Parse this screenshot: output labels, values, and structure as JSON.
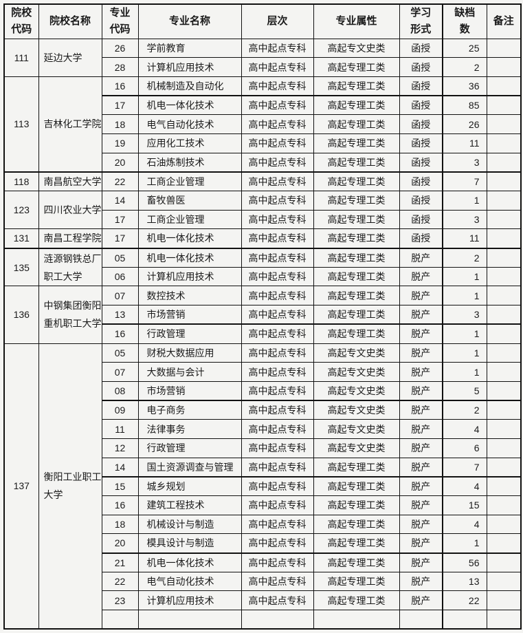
{
  "table": {
    "headers": {
      "school_code": "院校\n代码",
      "school_name": "院校名称",
      "major_code": "专业\n代码",
      "major_name": "专业名称",
      "level": "层次",
      "attribute": "专业属性",
      "study_form": "学习\n形式",
      "vacancy": "缺档\n数",
      "remark": "备注"
    },
    "colors": {
      "border": "#111111",
      "background": "#f4f4f2",
      "text": "#1a1a1a"
    },
    "groups": [
      {
        "code": "111",
        "name": "延边大学",
        "majors": [
          {
            "code": "26",
            "name": "学前教育",
            "level": "高中起点专科",
            "attr": "高起专文史类",
            "form": "函授",
            "vacancy": "25",
            "remark": ""
          },
          {
            "code": "28",
            "name": "计算机应用技术",
            "level": "高中起点专科",
            "attr": "高起专理工类",
            "form": "函授",
            "vacancy": "2",
            "remark": ""
          }
        ]
      },
      {
        "code": "113",
        "name": "吉林化工学院",
        "majors": [
          {
            "code": "16",
            "name": "机械制造及自动化",
            "level": "高中起点专科",
            "attr": "高起专理工类",
            "form": "函授",
            "vacancy": "36",
            "remark": ""
          },
          {
            "code": "17",
            "name": "机电一体化技术",
            "level": "高中起点专科",
            "attr": "高起专理工类",
            "form": "函授",
            "vacancy": "85",
            "remark": ""
          },
          {
            "code": "18",
            "name": "电气自动化技术",
            "level": "高中起点专科",
            "attr": "高起专理工类",
            "form": "函授",
            "vacancy": "26",
            "remark": ""
          },
          {
            "code": "19",
            "name": "应用化工技术",
            "level": "高中起点专科",
            "attr": "高起专理工类",
            "form": "函授",
            "vacancy": "11",
            "remark": ""
          },
          {
            "code": "20",
            "name": "石油炼制技术",
            "level": "高中起点专科",
            "attr": "高起专理工类",
            "form": "函授",
            "vacancy": "3",
            "remark": ""
          }
        ]
      },
      {
        "code": "118",
        "name": "南昌航空大学",
        "majors": [
          {
            "code": "22",
            "name": "工商企业管理",
            "level": "高中起点专科",
            "attr": "高起专理工类",
            "form": "函授",
            "vacancy": "7",
            "remark": ""
          }
        ]
      },
      {
        "code": "123",
        "name": "四川农业大学",
        "majors": [
          {
            "code": "14",
            "name": "畜牧兽医",
            "level": "高中起点专科",
            "attr": "高起专理工类",
            "form": "函授",
            "vacancy": "1",
            "remark": ""
          },
          {
            "code": "17",
            "name": "工商企业管理",
            "level": "高中起点专科",
            "attr": "高起专理工类",
            "form": "函授",
            "vacancy": "3",
            "remark": ""
          }
        ]
      },
      {
        "code": "131",
        "name": "南昌工程学院",
        "majors": [
          {
            "code": "17",
            "name": "机电一体化技术",
            "level": "高中起点专科",
            "attr": "高起专理工类",
            "form": "函授",
            "vacancy": "11",
            "remark": ""
          }
        ]
      },
      {
        "code": "135",
        "name": "涟源钢铁总厂职工大学",
        "majors": [
          {
            "code": "05",
            "name": "机电一体化技术",
            "level": "高中起点专科",
            "attr": "高起专理工类",
            "form": "脱产",
            "vacancy": "2",
            "remark": ""
          },
          {
            "code": "06",
            "name": "计算机应用技术",
            "level": "高中起点专科",
            "attr": "高起专理工类",
            "form": "脱产",
            "vacancy": "1",
            "remark": ""
          }
        ]
      },
      {
        "code": "136",
        "name": "中钢集团衡阳重机职工大学",
        "majors": [
          {
            "code": "07",
            "name": "数控技术",
            "level": "高中起点专科",
            "attr": "高起专理工类",
            "form": "脱产",
            "vacancy": "1",
            "remark": ""
          },
          {
            "code": "13",
            "name": "市场营销",
            "level": "高中起点专科",
            "attr": "高起专理工类",
            "form": "脱产",
            "vacancy": "3",
            "remark": ""
          },
          {
            "code": "16",
            "name": "行政管理",
            "level": "高中起点专科",
            "attr": "高起专理工类",
            "form": "脱产",
            "vacancy": "1",
            "remark": ""
          }
        ]
      },
      {
        "code": "137",
        "name": "衡阳工业职工大学",
        "majors": [
          {
            "code": "05",
            "name": "财税大数据应用",
            "level": "高中起点专科",
            "attr": "高起专文史类",
            "form": "脱产",
            "vacancy": "1",
            "remark": ""
          },
          {
            "code": "07",
            "name": "大数据与会计",
            "level": "高中起点专科",
            "attr": "高起专文史类",
            "form": "脱产",
            "vacancy": "1",
            "remark": ""
          },
          {
            "code": "08",
            "name": "市场营销",
            "level": "高中起点专科",
            "attr": "高起专文史类",
            "form": "脱产",
            "vacancy": "5",
            "remark": ""
          },
          {
            "code": "09",
            "name": "电子商务",
            "level": "高中起点专科",
            "attr": "高起专文史类",
            "form": "脱产",
            "vacancy": "2",
            "remark": ""
          },
          {
            "code": "11",
            "name": "法律事务",
            "level": "高中起点专科",
            "attr": "高起专文史类",
            "form": "脱产",
            "vacancy": "4",
            "remark": ""
          },
          {
            "code": "12",
            "name": "行政管理",
            "level": "高中起点专科",
            "attr": "高起专文史类",
            "form": "脱产",
            "vacancy": "6",
            "remark": ""
          },
          {
            "code": "14",
            "name": "国土资源调查与管理",
            "level": "高中起点专科",
            "attr": "高起专理工类",
            "form": "脱产",
            "vacancy": "7",
            "remark": ""
          },
          {
            "code": "15",
            "name": "城乡规划",
            "level": "高中起点专科",
            "attr": "高起专理工类",
            "form": "脱产",
            "vacancy": "4",
            "remark": ""
          },
          {
            "code": "16",
            "name": "建筑工程技术",
            "level": "高中起点专科",
            "attr": "高起专理工类",
            "form": "脱产",
            "vacancy": "15",
            "remark": ""
          },
          {
            "code": "18",
            "name": "机械设计与制造",
            "level": "高中起点专科",
            "attr": "高起专理工类",
            "form": "脱产",
            "vacancy": "4",
            "remark": ""
          },
          {
            "code": "20",
            "name": "模具设计与制造",
            "level": "高中起点专科",
            "attr": "高起专理工类",
            "form": "脱产",
            "vacancy": "1",
            "remark": ""
          },
          {
            "code": "21",
            "name": "机电一体化技术",
            "level": "高中起点专科",
            "attr": "高起专理工类",
            "form": "脱产",
            "vacancy": "56",
            "remark": ""
          },
          {
            "code": "22",
            "name": "电气自动化技术",
            "level": "高中起点专科",
            "attr": "高起专理工类",
            "form": "脱产",
            "vacancy": "13",
            "remark": ""
          },
          {
            "code": "23",
            "name": "计算机应用技术",
            "level": "高中起点专科",
            "attr": "高起专理工类",
            "form": "脱产",
            "vacancy": "22",
            "remark": ""
          }
        ]
      }
    ]
  }
}
